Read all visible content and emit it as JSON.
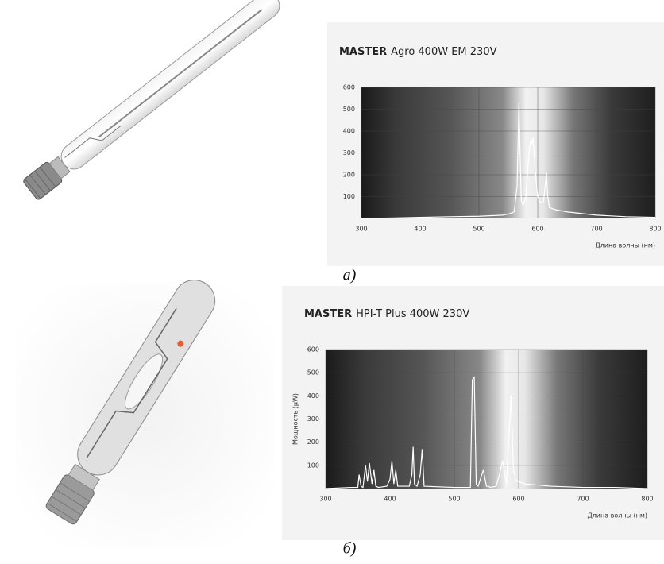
{
  "chart_data": [
    {
      "type": "line",
      "brand": "MASTER",
      "title": "Agro 400W EM 230V",
      "x_label": "Длина волны (нм)",
      "caption": "а)",
      "xlim": [
        300,
        800
      ],
      "ylim": [
        0,
        600
      ],
      "xticks": [
        300,
        400,
        500,
        600,
        700,
        800
      ],
      "yticks": [
        100,
        200,
        300,
        400,
        500,
        600
      ],
      "grid": true,
      "x": [
        300,
        350,
        400,
        450,
        500,
        540,
        550,
        560,
        565,
        568,
        570,
        572,
        575,
        580,
        585,
        588,
        590,
        592,
        595,
        598,
        600,
        605,
        610,
        615,
        617,
        620,
        630,
        650,
        700,
        750,
        800
      ],
      "series": [
        {
          "color": "#ffffff",
          "values": [
            0,
            2,
            5,
            8,
            10,
            15,
            20,
            30,
            150,
            530,
            300,
            80,
            60,
            100,
            300,
            360,
            340,
            370,
            250,
            150,
            100,
            70,
            80,
            210,
            100,
            50,
            40,
            30,
            15,
            8,
            5
          ]
        }
      ]
    },
    {
      "type": "line",
      "brand": "MASTER",
      "title": "HPI-T Plus 400W 230V",
      "x_label": "Длина волны (нм)",
      "y_label": "Мощность (μW)",
      "caption": "б)",
      "xlim": [
        300,
        800
      ],
      "ylim": [
        0,
        600
      ],
      "xticks": [
        300,
        400,
        500,
        600,
        700,
        800
      ],
      "yticks": [
        100,
        200,
        300,
        400,
        500,
        600
      ],
      "grid": true,
      "x": [
        300,
        340,
        350,
        352,
        355,
        358,
        362,
        365,
        368,
        372,
        375,
        378,
        382,
        395,
        400,
        403,
        406,
        409,
        412,
        430,
        434,
        436,
        438,
        442,
        447,
        450,
        453,
        500,
        525,
        528,
        531,
        534,
        537,
        545,
        550,
        553,
        556,
        565,
        570,
        575,
        578,
        581,
        585,
        588,
        590,
        592,
        595,
        600,
        610,
        650,
        700,
        750,
        800
      ],
      "series": [
        {
          "color": "#ffffff",
          "values": [
            0,
            5,
            5,
            60,
            10,
            5,
            100,
            30,
            110,
            20,
            80,
            10,
            5,
            10,
            40,
            120,
            20,
            80,
            10,
            10,
            60,
            180,
            20,
            10,
            60,
            170,
            10,
            5,
            5,
            470,
            480,
            20,
            10,
            80,
            10,
            10,
            5,
            10,
            60,
            120,
            70,
            20,
            230,
            400,
            240,
            80,
            40,
            30,
            20,
            10,
            5,
            5,
            0
          ]
        }
      ]
    }
  ]
}
